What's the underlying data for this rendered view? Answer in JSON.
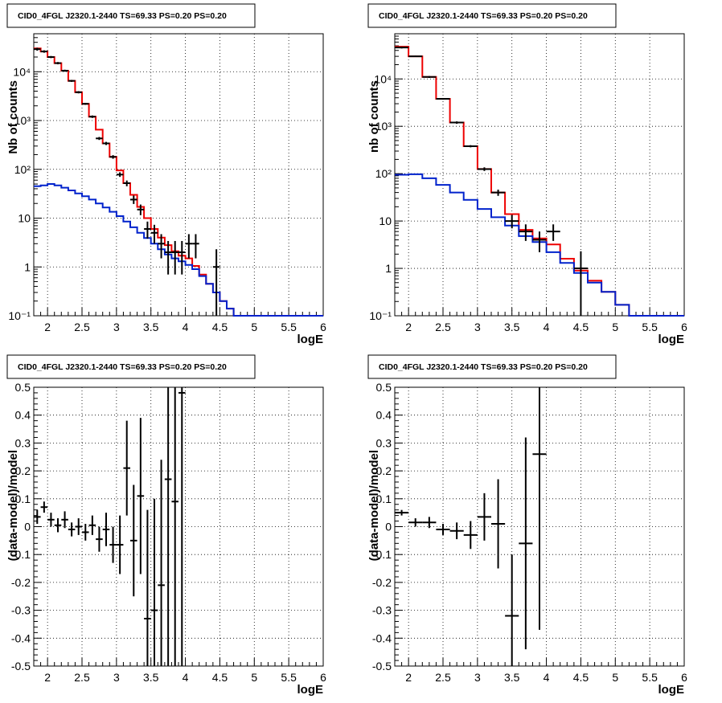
{
  "colors": {
    "data": "#000000",
    "total_model": "#ee0000",
    "source_model": "#0022cc",
    "grid": "#000000"
  },
  "chart_data": [
    {
      "type": "line",
      "title": "CID0_4FGL J2320.1-2440 TS=69.33 PS=0.20 PS=0.20",
      "xlabel": "logE",
      "ylabel": "Nb of counts",
      "xlim": [
        1.8,
        6.0
      ],
      "ylim": [
        0.1,
        60000
      ],
      "yscale": "log",
      "grid": true,
      "xticks": [
        "2",
        "2.5",
        "3",
        "3.5",
        "4",
        "4.5",
        "5",
        "5.5",
        "6"
      ],
      "yticks": [
        {
          "v": 10000,
          "t": "10⁴"
        },
        {
          "v": 1000,
          "t": "10³"
        },
        {
          "v": 100,
          "t": "10²"
        },
        {
          "v": 10,
          "t": "10"
        },
        {
          "v": 1,
          "t": "1"
        },
        {
          "v": 0.1,
          "t": "10⁻¹"
        }
      ],
      "series": [
        {
          "kind": "step",
          "role": "total_model",
          "edges": [
            1.8,
            1.9,
            2.0,
            2.1,
            2.2,
            2.3,
            2.4,
            2.5,
            2.6,
            2.7,
            2.8,
            2.9,
            3.0,
            3.1,
            3.2,
            3.3,
            3.4,
            3.5,
            3.6,
            3.7,
            3.8,
            3.9,
            4.0,
            4.1,
            4.2,
            4.3,
            4.4,
            4.5,
            4.6,
            4.7,
            4.8,
            4.9,
            5.0,
            5.1,
            5.2,
            5.3,
            5.4,
            5.5,
            5.6,
            5.7,
            5.8,
            5.9,
            6.0
          ],
          "values": [
            30000,
            26000,
            20000,
            15000,
            10500,
            6500,
            3800,
            2200,
            1200,
            650,
            340,
            180,
            95,
            52,
            30,
            17,
            10,
            6,
            4,
            2.8,
            2.1,
            1.7,
            1.5,
            1.05,
            0.7,
            0.45,
            0.3,
            0.2,
            0.14,
            0.1,
            0.1,
            0.1,
            0.1,
            0.1,
            0.1,
            0.1,
            0.1,
            0.1,
            0.1,
            0.1,
            0.1,
            0.1
          ]
        },
        {
          "kind": "step",
          "role": "source_model",
          "edges": [
            1.8,
            1.9,
            2.0,
            2.1,
            2.2,
            2.3,
            2.4,
            2.5,
            2.6,
            2.7,
            2.8,
            2.9,
            3.0,
            3.1,
            3.2,
            3.3,
            3.4,
            3.5,
            3.6,
            3.7,
            3.8,
            3.9,
            4.0,
            4.1,
            4.2,
            4.3,
            4.4,
            4.5,
            4.6,
            4.7,
            4.8,
            4.9,
            5.0,
            5.1,
            5.2,
            5.3,
            5.4,
            5.5,
            5.6,
            5.7,
            5.8,
            5.9,
            6.0
          ],
          "values": [
            45,
            47,
            50,
            47,
            42,
            37,
            32,
            28,
            24,
            20,
            16.5,
            13.5,
            11,
            8.5,
            6.5,
            5,
            3.9,
            3,
            2.3,
            1.8,
            1.5,
            1.3,
            1.1,
            0.9,
            0.65,
            0.45,
            0.3,
            0.2,
            0.14,
            0.1,
            0.1,
            0.1,
            0.1,
            0.1,
            0.1,
            0.1,
            0.1,
            0.1,
            0.1,
            0.1,
            0.1,
            0.1
          ]
        },
        {
          "kind": "points",
          "role": "data",
          "points": [
            {
              "x": 1.85,
              "y": 29000,
              "lo": 27000,
              "hi": 31000
            },
            {
              "x": 1.95,
              "y": 26000,
              "lo": 24500,
              "hi": 27500
            },
            {
              "x": 2.05,
              "y": 20000,
              "lo": 19000,
              "hi": 21000
            },
            {
              "x": 2.15,
              "y": 15000,
              "lo": 14200,
              "hi": 15800
            },
            {
              "x": 2.25,
              "y": 10500,
              "lo": 10000,
              "hi": 11000
            },
            {
              "x": 2.35,
              "y": 6500,
              "lo": 6200,
              "hi": 6800
            },
            {
              "x": 2.45,
              "y": 3800,
              "lo": 3600,
              "hi": 4000
            },
            {
              "x": 2.55,
              "y": 2200,
              "lo": 2100,
              "hi": 2300
            },
            {
              "x": 2.65,
              "y": 1200,
              "lo": 1130,
              "hi": 1270
            },
            {
              "x": 2.75,
              "y": 430,
              "lo": 400,
              "hi": 460
            },
            {
              "x": 2.85,
              "y": 340,
              "lo": 315,
              "hi": 365
            },
            {
              "x": 2.95,
              "y": 180,
              "lo": 165,
              "hi": 195
            },
            {
              "x": 3.05,
              "y": 78,
              "lo": 70,
              "hi": 87
            },
            {
              "x": 3.15,
              "y": 52,
              "lo": 45,
              "hi": 59
            },
            {
              "x": 3.25,
              "y": 24,
              "lo": 19.5,
              "hi": 29
            },
            {
              "x": 3.35,
              "y": 15,
              "lo": 11.5,
              "hi": 19
            },
            {
              "x": 3.45,
              "y": 6,
              "lo": 3.8,
              "hi": 8.5
            },
            {
              "x": 3.55,
              "y": 5,
              "lo": 3,
              "hi": 7.3
            },
            {
              "x": 3.65,
              "y": 3,
              "lo": 1.5,
              "hi": 4.7
            },
            {
              "x": 3.75,
              "y": 2,
              "lo": 0.7,
              "hi": 3.4
            },
            {
              "x": 3.85,
              "y": 2,
              "lo": 0.7,
              "hi": 3.4
            },
            {
              "x": 3.95,
              "y": 2,
              "lo": 0.7,
              "hi": 3.4
            },
            {
              "x": 4.05,
              "y": 3,
              "lo": 1.5,
              "hi": 4.7
            },
            {
              "x": 4.15,
              "y": 3,
              "lo": 1.5,
              "hi": 4.7
            },
            {
              "x": 4.45,
              "y": 1,
              "lo": 0.1,
              "hi": 2.3
            }
          ]
        }
      ]
    },
    {
      "type": "line",
      "title": "CID0_4FGL J2320.1-2440 TS=69.33 PS=0.20 PS=0.20",
      "xlabel": "logE",
      "ylabel": "nb of counts",
      "xlim": [
        1.8,
        6.0
      ],
      "ylim": [
        0.1,
        90000
      ],
      "yscale": "log",
      "grid": true,
      "xticks": [
        "2",
        "2.5",
        "3",
        "3.5",
        "4",
        "4.5",
        "5",
        "5.5",
        "6"
      ],
      "yticks": [
        {
          "v": 10000,
          "t": "10⁴"
        },
        {
          "v": 1000,
          "t": "10³"
        },
        {
          "v": 100,
          "t": "10²"
        },
        {
          "v": 10,
          "t": "10"
        },
        {
          "v": 1,
          "t": "1"
        },
        {
          "v": 0.1,
          "t": "10⁻¹"
        }
      ],
      "series": [
        {
          "kind": "step",
          "role": "total_model",
          "edges": [
            1.8,
            2.0,
            2.2,
            2.4,
            2.6,
            2.8,
            3.0,
            3.2,
            3.4,
            3.6,
            3.8,
            4.0,
            4.2,
            4.4,
            4.6,
            4.8,
            5.0,
            5.2,
            5.4,
            5.6,
            5.8,
            6.0
          ],
          "values": [
            48000,
            30000,
            11000,
            3800,
            1200,
            380,
            125,
            40,
            14,
            6.5,
            4.3,
            3.2,
            1.6,
            0.9,
            0.55,
            0.32,
            0.17,
            0.1,
            0.1,
            0.1,
            0.1
          ]
        },
        {
          "kind": "step",
          "role": "source_model",
          "edges": [
            1.8,
            2.0,
            2.2,
            2.4,
            2.6,
            2.8,
            3.0,
            3.2,
            3.4,
            3.6,
            3.8,
            4.0,
            4.2,
            4.4,
            4.6,
            4.8,
            5.0,
            5.2,
            5.4,
            5.6,
            5.8,
            6.0
          ],
          "values": [
            95,
            97,
            80,
            58,
            40,
            28,
            18,
            12,
            8,
            4.8,
            3.6,
            2.2,
            1.3,
            0.8,
            0.5,
            0.32,
            0.17,
            0.1,
            0.1,
            0.1,
            0.1
          ]
        },
        {
          "kind": "points",
          "role": "data",
          "points": [
            {
              "x": 1.9,
              "y": 46000,
              "lo": 44000,
              "hi": 48000
            },
            {
              "x": 2.1,
              "y": 30000,
              "lo": 29000,
              "hi": 31000
            },
            {
              "x": 2.3,
              "y": 11000,
              "lo": 10500,
              "hi": 11500
            },
            {
              "x": 2.5,
              "y": 3800,
              "lo": 3650,
              "hi": 3950
            },
            {
              "x": 2.7,
              "y": 1200,
              "lo": 1130,
              "hi": 1270
            },
            {
              "x": 2.9,
              "y": 380,
              "lo": 360,
              "hi": 400
            },
            {
              "x": 3.1,
              "y": 125,
              "lo": 114,
              "hi": 136
            },
            {
              "x": 3.3,
              "y": 40,
              "lo": 34,
              "hi": 46
            },
            {
              "x": 3.5,
              "y": 10,
              "lo": 7,
              "hi": 13.5
            },
            {
              "x": 3.7,
              "y": 6,
              "lo": 3.8,
              "hi": 8.5
            },
            {
              "x": 3.9,
              "y": 4,
              "lo": 2.2,
              "hi": 6
            },
            {
              "x": 4.1,
              "y": 6,
              "lo": 3.8,
              "hi": 8.5
            },
            {
              "x": 4.5,
              "y": 1,
              "lo": 0.1,
              "hi": 2.3
            }
          ]
        }
      ]
    },
    {
      "type": "scatter",
      "title": "CID0_4FGL J2320.1-2440 TS=69.33 PS=0.20 PS=0.20",
      "xlabel": "logE",
      "ylabel": "(data-model)/model",
      "xlim": [
        1.8,
        6.0
      ],
      "ylim": [
        -0.5,
        0.5
      ],
      "yscale": "linear",
      "grid": true,
      "xticks": [
        "2",
        "2.5",
        "3",
        "3.5",
        "4",
        "4.5",
        "5",
        "5.5",
        "6"
      ],
      "yticks": [
        {
          "v": 0.5,
          "t": "0.5"
        },
        {
          "v": 0.4,
          "t": "0.4"
        },
        {
          "v": 0.3,
          "t": "0.3"
        },
        {
          "v": 0.2,
          "t": "0.2"
        },
        {
          "v": 0.1,
          "t": "0.1"
        },
        {
          "v": 0,
          "t": "0"
        },
        {
          "v": -0.1,
          "t": "-0.1"
        },
        {
          "v": -0.2,
          "t": "-0.2"
        },
        {
          "v": -0.3,
          "t": "-0.3"
        },
        {
          "v": -0.4,
          "t": "-0.4"
        },
        {
          "v": -0.5,
          "t": "-0.5"
        }
      ],
      "series": [
        {
          "kind": "points",
          "role": "data",
          "xerr": 0.05,
          "points": [
            {
              "x": 1.85,
              "y": 0.035,
              "lo": 0.01,
              "hi": 0.06
            },
            {
              "x": 1.95,
              "y": 0.07,
              "lo": 0.05,
              "hi": 0.09
            },
            {
              "x": 2.05,
              "y": 0.025,
              "lo": 0.0,
              "hi": 0.05
            },
            {
              "x": 2.15,
              "y": 0.005,
              "lo": -0.02,
              "hi": 0.03
            },
            {
              "x": 2.25,
              "y": 0.025,
              "lo": -0.005,
              "hi": 0.055
            },
            {
              "x": 2.35,
              "y": -0.01,
              "lo": -0.035,
              "hi": 0.015
            },
            {
              "x": 2.45,
              "y": 0.0,
              "lo": -0.03,
              "hi": 0.03
            },
            {
              "x": 2.55,
              "y": -0.02,
              "lo": -0.05,
              "hi": 0.01
            },
            {
              "x": 2.65,
              "y": 0.005,
              "lo": -0.03,
              "hi": 0.04
            },
            {
              "x": 2.75,
              "y": -0.045,
              "lo": -0.09,
              "hi": 0.0
            },
            {
              "x": 2.85,
              "y": -0.01,
              "lo": -0.07,
              "hi": 0.05
            },
            {
              "x": 2.95,
              "y": -0.065,
              "lo": -0.13,
              "hi": 0.0
            },
            {
              "x": 3.05,
              "y": -0.065,
              "lo": -0.17,
              "hi": 0.04
            },
            {
              "x": 3.15,
              "y": 0.21,
              "lo": 0.04,
              "hi": 0.38
            },
            {
              "x": 3.25,
              "y": -0.05,
              "lo": -0.25,
              "hi": 0.15
            },
            {
              "x": 3.35,
              "y": 0.11,
              "lo": -0.17,
              "hi": 0.39
            },
            {
              "x": 3.45,
              "y": -0.33,
              "lo": -0.5,
              "hi": 0.06
            },
            {
              "x": 3.55,
              "y": -0.3,
              "lo": -0.5,
              "hi": 0.1
            },
            {
              "x": 3.65,
              "y": -0.21,
              "lo": -0.5,
              "hi": 0.24
            },
            {
              "x": 3.75,
              "y": 0.17,
              "lo": -0.5,
              "hi": 0.5
            },
            {
              "x": 3.85,
              "y": 0.09,
              "lo": -0.5,
              "hi": 0.5
            },
            {
              "x": 3.95,
              "y": 0.48,
              "lo": -0.5,
              "hi": 0.5
            }
          ]
        }
      ]
    },
    {
      "type": "scatter",
      "title": "CID0_4FGL J2320.1-2440 TS=69.33 PS=0.20 PS=0.20",
      "xlabel": "logE",
      "ylabel": "(data-model)/model",
      "xlim": [
        1.8,
        6.0
      ],
      "ylim": [
        -0.5,
        0.5
      ],
      "yscale": "linear",
      "grid": true,
      "xticks": [
        "2",
        "2.5",
        "3",
        "3.5",
        "4",
        "4.5",
        "5",
        "5.5",
        "6"
      ],
      "yticks": [
        {
          "v": 0.5,
          "t": "0.5"
        },
        {
          "v": 0.4,
          "t": "0.4"
        },
        {
          "v": 0.3,
          "t": "0.3"
        },
        {
          "v": 0.2,
          "t": "0.2"
        },
        {
          "v": 0.1,
          "t": "0.1"
        },
        {
          "v": 0,
          "t": "0"
        },
        {
          "v": -0.1,
          "t": "-0.1"
        },
        {
          "v": -0.2,
          "t": "-0.2"
        },
        {
          "v": -0.3,
          "t": "-0.3"
        },
        {
          "v": -0.4,
          "t": "-0.4"
        },
        {
          "v": -0.5,
          "t": "-0.5"
        }
      ],
      "series": [
        {
          "kind": "points",
          "role": "data",
          "xerr": 0.1,
          "points": [
            {
              "x": 1.9,
              "y": 0.05,
              "lo": 0.04,
              "hi": 0.06
            },
            {
              "x": 2.1,
              "y": 0.015,
              "lo": 0.0,
              "hi": 0.03
            },
            {
              "x": 2.3,
              "y": 0.015,
              "lo": -0.005,
              "hi": 0.035
            },
            {
              "x": 2.5,
              "y": -0.01,
              "lo": -0.03,
              "hi": 0.01
            },
            {
              "x": 2.7,
              "y": -0.015,
              "lo": -0.045,
              "hi": 0.015
            },
            {
              "x": 2.9,
              "y": -0.03,
              "lo": -0.08,
              "hi": 0.02
            },
            {
              "x": 3.1,
              "y": 0.035,
              "lo": -0.05,
              "hi": 0.12
            },
            {
              "x": 3.3,
              "y": 0.01,
              "lo": -0.15,
              "hi": 0.17
            },
            {
              "x": 3.5,
              "y": -0.32,
              "lo": -0.5,
              "hi": -0.1
            },
            {
              "x": 3.7,
              "y": -0.06,
              "lo": -0.44,
              "hi": 0.32
            },
            {
              "x": 3.9,
              "y": 0.26,
              "lo": -0.37,
              "hi": 0.5
            }
          ]
        }
      ]
    }
  ]
}
